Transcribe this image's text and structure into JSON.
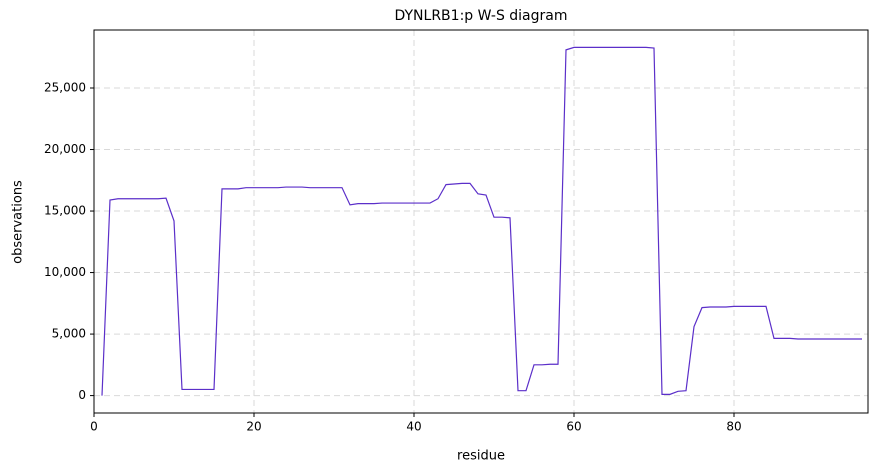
{
  "chart_data": {
    "type": "line",
    "title": "DYNLRB1:p W-S diagram",
    "x_label": "residue",
    "y_label": "observations",
    "color": "#5b2fc9",
    "grid": true,
    "xlim": [
      0,
      96.75
    ],
    "ylim": [
      -1415,
      29715
    ],
    "xticks": [
      0,
      20,
      40,
      60,
      80
    ],
    "yticks": [
      0,
      {
        "value": 5000,
        "label": "5,000"
      },
      {
        "value": 10000,
        "label": "10,000"
      },
      {
        "value": 15000,
        "label": "15,000"
      },
      {
        "value": 20000,
        "label": "20,000"
      },
      {
        "value": 25000,
        "label": "25,000"
      }
    ],
    "x": [
      1,
      2,
      3,
      4,
      5,
      6,
      7,
      8,
      9,
      10,
      11,
      12,
      13,
      14,
      15,
      16,
      17,
      18,
      19,
      20,
      21,
      22,
      23,
      24,
      25,
      26,
      27,
      28,
      29,
      30,
      31,
      32,
      33,
      34,
      35,
      36,
      37,
      38,
      39,
      40,
      41,
      42,
      43,
      44,
      45,
      46,
      47,
      48,
      49,
      50,
      51,
      52,
      53,
      54,
      55,
      56,
      57,
      58,
      59,
      60,
      61,
      62,
      63,
      64,
      65,
      66,
      67,
      68,
      69,
      70,
      71,
      72,
      73,
      74,
      75,
      76,
      77,
      78,
      79,
      80,
      81,
      82,
      83,
      84,
      85,
      86,
      87,
      88,
      89,
      90,
      91,
      92,
      93,
      94,
      95,
      96
    ],
    "values": [
      0,
      15900,
      16000,
      16000,
      16000,
      16000,
      16000,
      16000,
      16050,
      14200,
      500,
      500,
      500,
      500,
      500,
      16800,
      16800,
      16800,
      16900,
      16900,
      16900,
      16900,
      16900,
      16950,
      16950,
      16950,
      16900,
      16900,
      16900,
      16900,
      16900,
      15500,
      15600,
      15600,
      15600,
      15650,
      15650,
      15650,
      15650,
      15650,
      15650,
      15650,
      16000,
      17150,
      17200,
      17250,
      17250,
      16400,
      16300,
      14500,
      14500,
      14450,
      400,
      400,
      2500,
      2500,
      2550,
      2550,
      28100,
      28300,
      28300,
      28300,
      28300,
      28300,
      28300,
      28300,
      28300,
      28300,
      28300,
      28250,
      100,
      100,
      350,
      400,
      5600,
      7150,
      7200,
      7200,
      7200,
      7250,
      7250,
      7250,
      7250,
      7250,
      4650,
      4650,
      4650,
      4600,
      4600,
      4600,
      4600,
      4600,
      4600,
      4600,
      4600,
      4600
    ]
  }
}
